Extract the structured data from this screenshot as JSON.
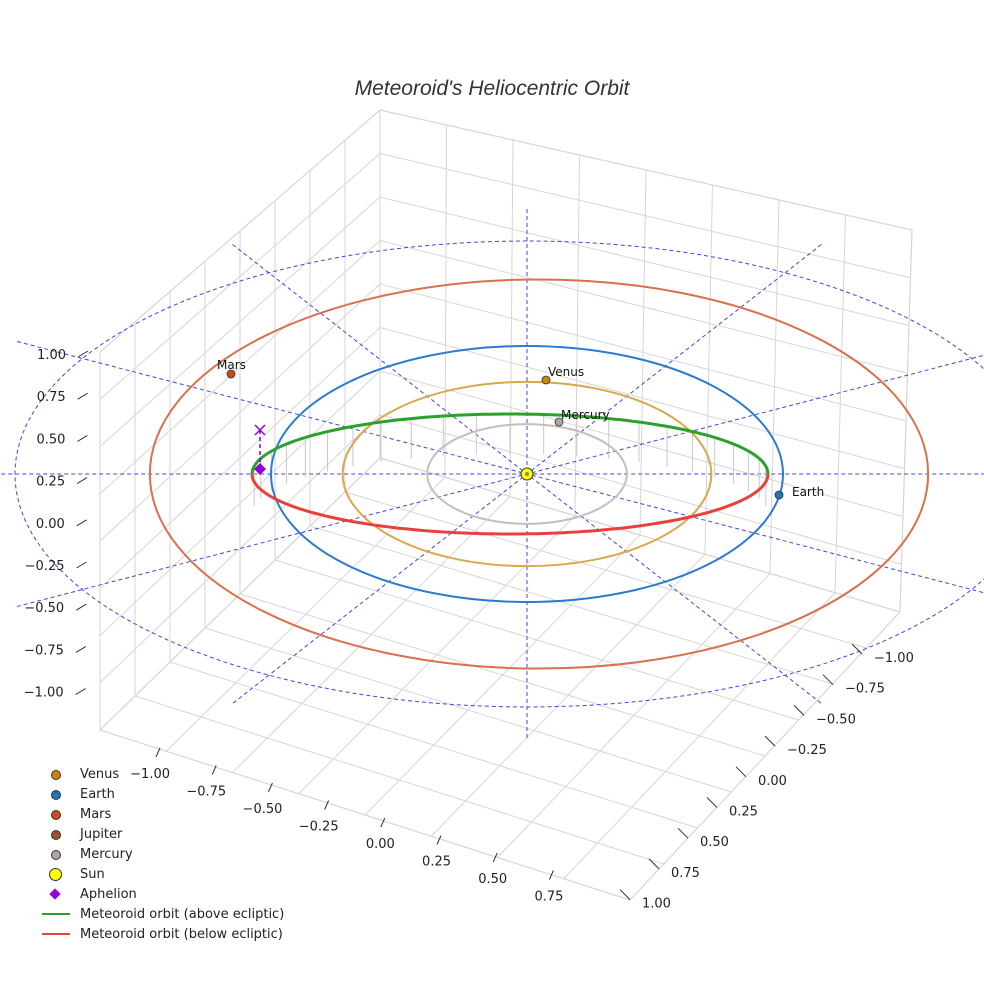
{
  "chart_data": {
    "type": "3d-orbit",
    "title": "Meteoroid's Heliocentric Orbit",
    "axes": {
      "x": {
        "label": "",
        "ticks": [
          "−1.00",
          "−0.75",
          "−0.50",
          "−0.25",
          "0.00",
          "0.25",
          "0.50",
          "0.75"
        ],
        "range": [
          -1.1,
          1.1
        ]
      },
      "y": {
        "label": "",
        "ticks": [
          "−1.00",
          "−0.75",
          "−0.50",
          "−0.25",
          "0.00",
          "0.25",
          "0.50",
          "0.75",
          "1.00"
        ],
        "range": [
          -1.1,
          1.1
        ]
      },
      "z": {
        "label": "",
        "ticks": [
          "1.00",
          "0.75",
          "0.50",
          "0.25",
          "0.00",
          "−0.25",
          "−0.50",
          "−0.75",
          "−1.00"
        ],
        "range": [
          -1.1,
          1.1
        ]
      },
      "grid": true
    },
    "orbits": [
      {
        "name": "Mercury orbit",
        "a_au": 0.39,
        "color": "#c8bcbc"
      },
      {
        "name": "Venus orbit",
        "a_au": 0.72,
        "color": "#d8a84a"
      },
      {
        "name": "Earth orbit",
        "a_au": 1.0,
        "color": "#2b7bd0"
      },
      {
        "name": "Mars orbit",
        "a_au": 1.52,
        "color": "#d9714e"
      }
    ],
    "bodies": [
      {
        "name": "Venus",
        "color": "#c8860a",
        "show_label": true
      },
      {
        "name": "Earth",
        "color": "#1f77b4",
        "show_label": true
      },
      {
        "name": "Mars",
        "color": "#d04a1c",
        "show_label": true
      },
      {
        "name": "Jupiter",
        "color": "#a0522d",
        "show_label": false
      },
      {
        "name": "Mercury",
        "color": "#b0a4a4",
        "show_label": true
      }
    ],
    "sun": {
      "name": "Sun",
      "color": "#ffff00"
    },
    "aphelion": {
      "name": "Aphelion",
      "color": "#9400d3"
    },
    "meteoroid": {
      "above_label": "Meteoroid orbit (above ecliptic)",
      "above_color": "#2ca02c",
      "below_label": "Meteoroid orbit (below ecliptic)",
      "below_color": "#e8413c"
    },
    "reference_grid_color": "#4444dd",
    "legend_position": "bottom-left"
  }
}
